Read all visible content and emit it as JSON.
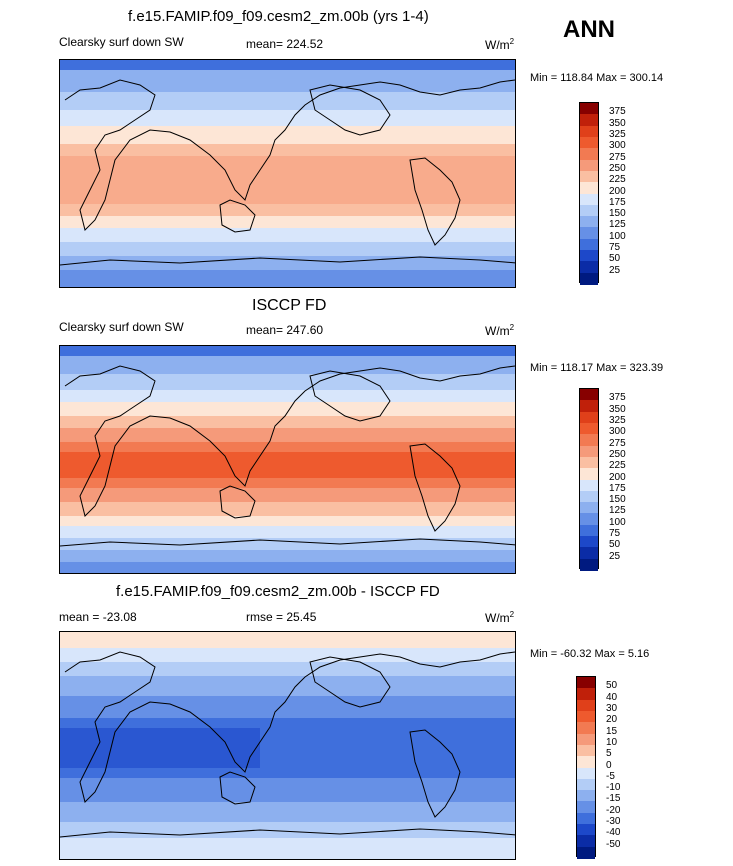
{
  "season": "ANN",
  "panels": [
    {
      "title": "f.e15.FAMIP.f09_f09.cesm2_zm.00b (yrs 1-4)",
      "variable": "Clearsky surf down SW",
      "stat": "mean= 224.52",
      "units_base": "W/m",
      "units_sup": "2",
      "minmax": "Min = 118.84 Max = 300.14",
      "colorbar": {
        "labels": [
          "375",
          "350",
          "325",
          "300",
          "275",
          "250",
          "225",
          "200",
          "175",
          "150",
          "125",
          "100",
          "75",
          "50",
          "25"
        ],
        "colors": [
          "#870000",
          "#c0200a",
          "#e0401a",
          "#ee5a2e",
          "#f27a52",
          "#f59a7a",
          "#fabfa2",
          "#fde6d6",
          "#d8e6fb",
          "#b3cdf6",
          "#8db0ef",
          "#6690e6",
          "#3f6fdc",
          "#1d48c9",
          "#0b2ca6",
          "#001a80"
        ]
      }
    },
    {
      "title": "ISCCP FD",
      "variable": "Clearsky surf down SW",
      "stat": "mean= 247.60",
      "units_base": "W/m",
      "units_sup": "2",
      "minmax": "Min = 118.17 Max = 323.39",
      "colorbar": {
        "labels": [
          "375",
          "350",
          "325",
          "300",
          "275",
          "250",
          "225",
          "200",
          "175",
          "150",
          "125",
          "100",
          "75",
          "50",
          "25"
        ],
        "colors": [
          "#870000",
          "#c0200a",
          "#e0401a",
          "#ee5a2e",
          "#f27a52",
          "#f59a7a",
          "#fabfa2",
          "#fde6d6",
          "#d8e6fb",
          "#b3cdf6",
          "#8db0ef",
          "#6690e6",
          "#3f6fdc",
          "#1d48c9",
          "#0b2ca6",
          "#001a80"
        ]
      }
    },
    {
      "title": "f.e15.FAMIP.f09_f09.cesm2_zm.00b - ISCCP FD",
      "variable": "mean = -23.08",
      "stat": "rmse =  25.45",
      "units_base": "W/m",
      "units_sup": "2",
      "minmax": "Min = -60.32 Max =   5.16",
      "colorbar": {
        "labels": [
          "50",
          "40",
          "30",
          "20",
          "15",
          "10",
          "5",
          "0",
          "-5",
          "-10",
          "-15",
          "-20",
          "-30",
          "-40",
          "-50"
        ],
        "colors": [
          "#870000",
          "#c0200a",
          "#e0401a",
          "#ee5a2e",
          "#f27a52",
          "#f59a7a",
          "#fabfa2",
          "#fde6d6",
          "#d8e6fb",
          "#b3cdf6",
          "#8db0ef",
          "#6690e6",
          "#3f6fdc",
          "#1d48c9",
          "#0b2ca6",
          "#001a80"
        ]
      }
    }
  ]
}
